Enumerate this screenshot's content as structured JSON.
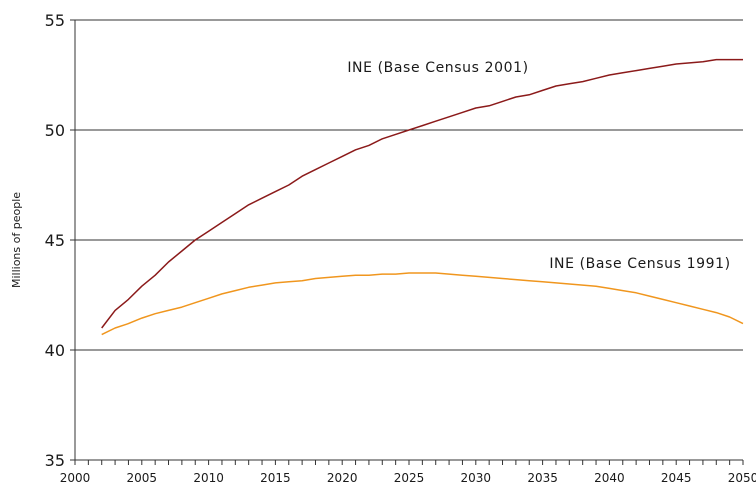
{
  "chart_data": {
    "type": "line",
    "title": "",
    "xlabel": "",
    "ylabel": "Millions of people",
    "xlim": [
      2000,
      2050
    ],
    "ylim": [
      35,
      55
    ],
    "yticks": [
      35,
      40,
      45,
      50,
      55
    ],
    "xticks": [
      2000,
      2005,
      2010,
      2015,
      2020,
      2025,
      2030,
      2035,
      2040,
      2045,
      2050
    ],
    "grid": "horizontal",
    "series": [
      {
        "name": "INE (Base Census 2001)",
        "color": "#8b1a1a",
        "x": [
          2002,
          2003,
          2004,
          2005,
          2006,
          2007,
          2008,
          2009,
          2010,
          2011,
          2012,
          2013,
          2014,
          2015,
          2016,
          2017,
          2018,
          2019,
          2020,
          2021,
          2022,
          2023,
          2024,
          2025,
          2026,
          2027,
          2028,
          2029,
          2030,
          2031,
          2032,
          2033,
          2034,
          2035,
          2036,
          2037,
          2038,
          2039,
          2040,
          2041,
          2042,
          2043,
          2044,
          2045,
          2046,
          2047,
          2048,
          2049,
          2050
        ],
        "y": [
          41.0,
          41.8,
          42.3,
          42.9,
          43.4,
          44.0,
          44.5,
          45.0,
          45.4,
          45.8,
          46.2,
          46.6,
          46.9,
          47.2,
          47.5,
          47.9,
          48.2,
          48.5,
          48.8,
          49.1,
          49.3,
          49.6,
          49.8,
          50.0,
          50.2,
          50.4,
          50.6,
          50.8,
          51.0,
          51.1,
          51.3,
          51.5,
          51.6,
          51.8,
          52.0,
          52.1,
          52.2,
          52.35,
          52.5,
          52.6,
          52.7,
          52.8,
          52.9,
          53.0,
          53.05,
          53.1,
          53.2,
          53.2,
          53.2
        ]
      },
      {
        "name": "INE (Base Census 1991)",
        "color": "#f0961e",
        "x": [
          2002,
          2003,
          2004,
          2005,
          2006,
          2007,
          2008,
          2009,
          2010,
          2011,
          2012,
          2013,
          2014,
          2015,
          2016,
          2017,
          2018,
          2019,
          2020,
          2021,
          2022,
          2023,
          2024,
          2025,
          2026,
          2027,
          2028,
          2029,
          2030,
          2031,
          2032,
          2033,
          2034,
          2035,
          2036,
          2037,
          2038,
          2039,
          2040,
          2041,
          2042,
          2043,
          2044,
          2045,
          2046,
          2047,
          2048,
          2049,
          2050
        ],
        "y": [
          40.7,
          41.0,
          41.2,
          41.45,
          41.65,
          41.8,
          41.95,
          42.15,
          42.35,
          42.55,
          42.7,
          42.85,
          42.95,
          43.05,
          43.1,
          43.15,
          43.25,
          43.3,
          43.35,
          43.4,
          43.4,
          43.45,
          43.45,
          43.5,
          43.5,
          43.5,
          43.45,
          43.4,
          43.35,
          43.3,
          43.25,
          43.2,
          43.15,
          43.1,
          43.05,
          43.0,
          42.95,
          42.9,
          42.8,
          42.7,
          42.6,
          42.45,
          42.3,
          42.15,
          42.0,
          41.85,
          41.7,
          41.5,
          41.2
        ]
      }
    ],
    "annotations": [
      {
        "text": "INE (Base Census 2001)",
        "series": 0
      },
      {
        "text": "INE (Base Census 1991)",
        "series": 1
      }
    ]
  }
}
